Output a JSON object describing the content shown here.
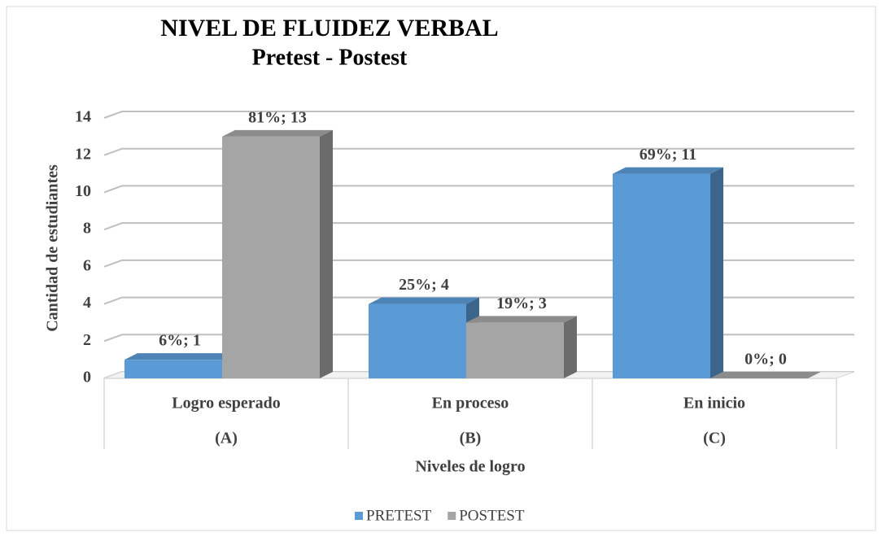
{
  "chart_data": {
    "type": "bar3d",
    "title": "NIVEL DE FLUIDEZ VERBAL",
    "subtitle": "Pretest - Postest",
    "y_label": "Cantidad de estudiantes",
    "x_label": "Niveles de logro",
    "categories": [
      "Logro esperado",
      "En proceso",
      "En inicio"
    ],
    "subcategories": [
      "(A)",
      "(B)",
      "(C)"
    ],
    "series": [
      {
        "name": "PRETEST",
        "color": "#5b9bd5",
        "values": [
          1,
          4,
          11
        ],
        "value_labels": [
          "6%; 1",
          "25%; 4",
          "69%; 11"
        ]
      },
      {
        "name": "POSTEST",
        "color": "#a5a5a5",
        "values": [
          13,
          3,
          0
        ],
        "value_labels": [
          "81%; 13",
          "19%; 3",
          "0%; 0"
        ]
      }
    ],
    "ylim": [
      0,
      14
    ],
    "yticks": [
      0,
      2,
      4,
      6,
      8,
      10,
      12,
      14
    ],
    "grid": true,
    "legend": "bottom"
  }
}
